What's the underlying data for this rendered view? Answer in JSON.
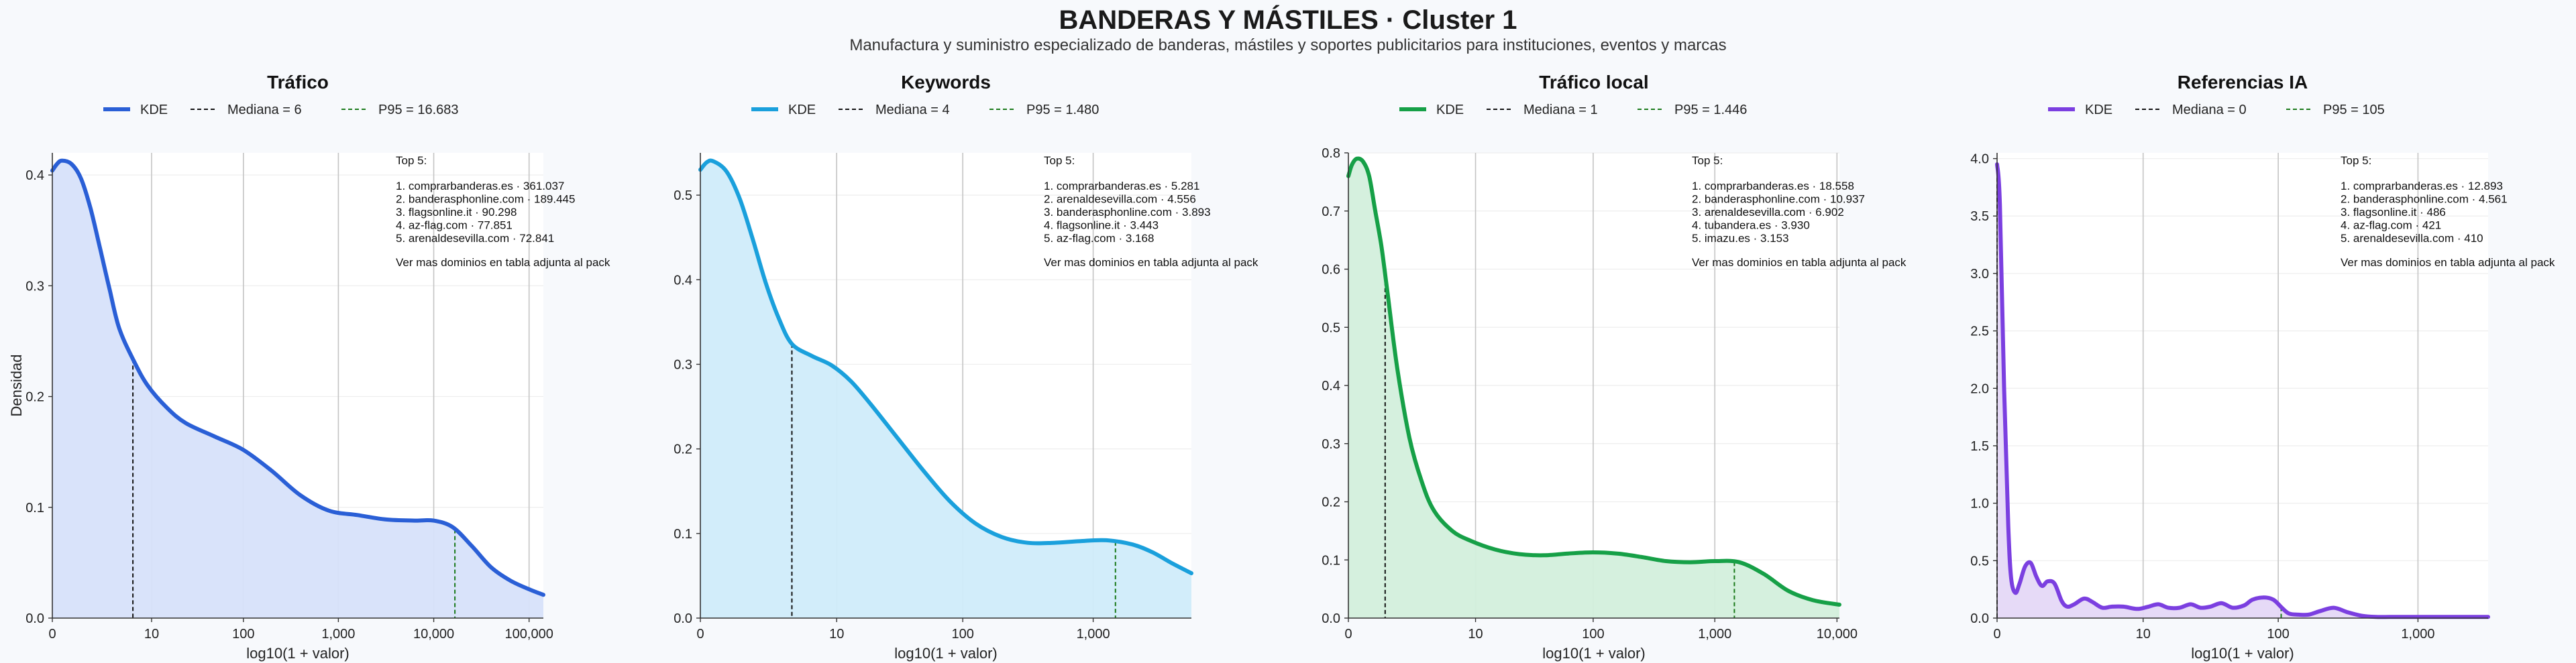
{
  "header": {
    "title": "BANDERAS Y MÁSTILES · Cluster 1",
    "subtitle": "Manufactura y suministro especializado de banderas, mástiles y soportes publicitarios para instituciones, eventos y marcas"
  },
  "chart_data": [
    {
      "type": "area",
      "title": "Tráfico",
      "xlabel": "log10(1 + valor)",
      "ylabel": "Densidad",
      "color": "#2a5fd6",
      "fill": "#d7e2fa",
      "xlim": [
        0,
        5.15
      ],
      "ylim": [
        0,
        0.42
      ],
      "xticks": [
        {
          "v": 0,
          "label": "0"
        },
        {
          "v": 1.041,
          "label": "10"
        },
        {
          "v": 2.004,
          "label": "100"
        },
        {
          "v": 3.0,
          "label": "1,000"
        },
        {
          "v": 4.0,
          "label": "10,000"
        },
        {
          "v": 5.0,
          "label": "100,000"
        }
      ],
      "yticks": [
        0,
        0.1,
        0.2,
        0.3,
        0.4
      ],
      "x": [
        0,
        0.05,
        0.1,
        0.2,
        0.3,
        0.4,
        0.5,
        0.6,
        0.7,
        0.85,
        1.0,
        1.2,
        1.4,
        1.7,
        2.0,
        2.3,
        2.6,
        2.9,
        3.2,
        3.5,
        3.8,
        4.0,
        4.2,
        4.4,
        4.6,
        4.8,
        5.0,
        5.15
      ],
      "y": [
        0.404,
        0.41,
        0.413,
        0.41,
        0.397,
        0.37,
        0.334,
        0.297,
        0.262,
        0.233,
        0.21,
        0.19,
        0.176,
        0.164,
        0.152,
        0.133,
        0.111,
        0.097,
        0.093,
        0.089,
        0.088,
        0.088,
        0.082,
        0.065,
        0.046,
        0.034,
        0.026,
        0.021
      ],
      "median": {
        "x": 0.845,
        "label": "Mediana = 6"
      },
      "p95": {
        "x": 4.222,
        "label": "P95 = 16.683"
      },
      "legend": {
        "kde": "KDE",
        "median": "Mediana = 6",
        "p95": "P95 = 16.683"
      },
      "top5": {
        "heading": "Top 5:",
        "items": [
          "1. comprarbanderas.es · 361.037",
          "2. banderasphonline.com · 189.445",
          "3. flagsonline.it · 90.298",
          "4. az-flag.com · 77.851",
          "5. arenaldesevilla.com · 72.841"
        ],
        "footer": "Ver mas dominios en tabla adjunta al pack"
      }
    },
    {
      "type": "area",
      "title": "Keywords",
      "xlabel": "log10(1 + valor)",
      "ylabel": "",
      "color": "#1aa0dc",
      "fill": "#d0ecfa",
      "xlim": [
        0,
        3.75
      ],
      "ylim": [
        0,
        0.55
      ],
      "xticks": [
        {
          "v": 0,
          "label": "0"
        },
        {
          "v": 1.041,
          "label": "10"
        },
        {
          "v": 2.004,
          "label": "100"
        },
        {
          "v": 3.0,
          "label": "1,000"
        }
      ],
      "yticks": [
        0,
        0.1,
        0.2,
        0.3,
        0.4,
        0.5
      ],
      "x": [
        0,
        0.05,
        0.1,
        0.2,
        0.3,
        0.4,
        0.5,
        0.6,
        0.7,
        0.85,
        1.0,
        1.15,
        1.3,
        1.5,
        1.7,
        1.9,
        2.1,
        2.3,
        2.5,
        2.7,
        2.9,
        3.1,
        3.3,
        3.45,
        3.6,
        3.75
      ],
      "y": [
        0.53,
        0.539,
        0.54,
        0.528,
        0.496,
        0.448,
        0.396,
        0.354,
        0.324,
        0.31,
        0.299,
        0.28,
        0.253,
        0.214,
        0.175,
        0.139,
        0.112,
        0.096,
        0.089,
        0.089,
        0.091,
        0.092,
        0.087,
        0.078,
        0.065,
        0.053
      ],
      "median": {
        "x": 0.699,
        "label": "Mediana = 4"
      },
      "p95": {
        "x": 3.17,
        "label": "P95 = 1.480"
      },
      "legend": {
        "kde": "KDE",
        "median": "Mediana = 4",
        "p95": "P95 = 1.480"
      },
      "top5": {
        "heading": "Top 5:",
        "items": [
          "1. comprarbanderas.es · 5.281",
          "2. arenaldesevilla.com · 4.556",
          "3. banderasphonline.com · 3.893",
          "4. flagsonline.it · 3.443",
          "5. az-flag.com · 3.168"
        ],
        "footer": "Ver mas dominios en tabla adjunta al pack"
      }
    },
    {
      "type": "area",
      "title": "Tráfico local",
      "xlabel": "log10(1 + valor)",
      "ylabel": "",
      "color": "#16a047",
      "fill": "#d3efdc",
      "xlim": [
        0,
        4.02
      ],
      "ylim": [
        0,
        0.8
      ],
      "xticks": [
        {
          "v": 0,
          "label": "0"
        },
        {
          "v": 1.041,
          "label": "10"
        },
        {
          "v": 2.004,
          "label": "100"
        },
        {
          "v": 3.0,
          "label": "1,000"
        },
        {
          "v": 4.0,
          "label": "10,000"
        }
      ],
      "yticks": [
        0,
        0.1,
        0.2,
        0.3,
        0.4,
        0.5,
        0.6,
        0.7,
        0.8
      ],
      "x": [
        0,
        0.03,
        0.07,
        0.12,
        0.17,
        0.22,
        0.27,
        0.32,
        0.4,
        0.5,
        0.6,
        0.7,
        0.85,
        1.0,
        1.2,
        1.4,
        1.6,
        1.8,
        2.0,
        2.2,
        2.4,
        2.6,
        2.8,
        3.0,
        3.2,
        3.4,
        3.6,
        3.8,
        4.02
      ],
      "y": [
        0.76,
        0.78,
        0.79,
        0.785,
        0.76,
        0.7,
        0.64,
        0.56,
        0.43,
        0.31,
        0.235,
        0.185,
        0.15,
        0.133,
        0.118,
        0.11,
        0.108,
        0.111,
        0.113,
        0.111,
        0.105,
        0.098,
        0.096,
        0.098,
        0.096,
        0.076,
        0.047,
        0.031,
        0.023
      ],
      "median": {
        "x": 0.301,
        "label": "Mediana = 1"
      },
      "p95": {
        "x": 3.16,
        "label": "P95 = 1.446"
      },
      "legend": {
        "kde": "KDE",
        "median": "Mediana = 1",
        "p95": "P95 = 1.446"
      },
      "top5": {
        "heading": "Top 5:",
        "items": [
          "1. comprarbanderas.es · 18.558",
          "2. banderasphonline.com · 10.937",
          "3. arenaldesevilla.com · 6.902",
          "4. tubandera.es · 3.930",
          "5. imazu.es · 3.153"
        ],
        "footer": "Ver mas dominios en tabla adjunta al pack"
      }
    },
    {
      "type": "area",
      "title": "Referencias IA",
      "xlabel": "log10(1 + valor)",
      "ylabel": "",
      "color": "#7b3fe0",
      "fill": "#e5d8f7",
      "xlim": [
        0,
        3.5
      ],
      "ylim": [
        0,
        4.05
      ],
      "xticks": [
        {
          "v": 0,
          "label": "0"
        },
        {
          "v": 1.041,
          "label": "10"
        },
        {
          "v": 2.004,
          "label": "100"
        },
        {
          "v": 3.0,
          "label": "1,000"
        }
      ],
      "yticks": [
        0,
        0.5,
        1.0,
        1.5,
        2.0,
        2.5,
        3.0,
        3.5,
        4.0
      ],
      "x": [
        0,
        0.02,
        0.05,
        0.08,
        0.1,
        0.13,
        0.16,
        0.2,
        0.24,
        0.28,
        0.32,
        0.36,
        0.41,
        0.46,
        0.5,
        0.55,
        0.62,
        0.68,
        0.75,
        0.82,
        0.9,
        1.0,
        1.08,
        1.15,
        1.22,
        1.3,
        1.38,
        1.45,
        1.52,
        1.6,
        1.68,
        1.76,
        1.82,
        1.9,
        1.97,
        2.03,
        2.08,
        2.15,
        2.22,
        2.3,
        2.4,
        2.5,
        2.6,
        2.7,
        2.8,
        3.0,
        3.2,
        3.5
      ],
      "y": [
        3.95,
        3.6,
        2.0,
        0.8,
        0.35,
        0.22,
        0.3,
        0.45,
        0.48,
        0.36,
        0.28,
        0.32,
        0.3,
        0.15,
        0.1,
        0.12,
        0.17,
        0.14,
        0.09,
        0.1,
        0.1,
        0.08,
        0.1,
        0.12,
        0.09,
        0.09,
        0.12,
        0.09,
        0.1,
        0.13,
        0.09,
        0.11,
        0.16,
        0.18,
        0.16,
        0.09,
        0.04,
        0.03,
        0.03,
        0.06,
        0.09,
        0.05,
        0.02,
        0.01,
        0.01,
        0.01,
        0.01,
        0.01
      ],
      "median": {
        "x": 0.0,
        "label": "Mediana = 0"
      },
      "p95": {
        "x": 2.025,
        "label": "P95 = 105"
      },
      "legend": {
        "kde": "KDE",
        "median": "Mediana = 0",
        "p95": "P95 = 105"
      },
      "top5": {
        "heading": "Top 5:",
        "items": [
          "1. comprarbanderas.es · 12.893",
          "2. banderasphonline.com · 4.561",
          "3. flagsonline.it · 486",
          "4. az-flag.com · 421",
          "5. arenaldesevilla.com · 410"
        ],
        "footer": "Ver mas dominios en tabla adjunta al pack"
      }
    }
  ]
}
